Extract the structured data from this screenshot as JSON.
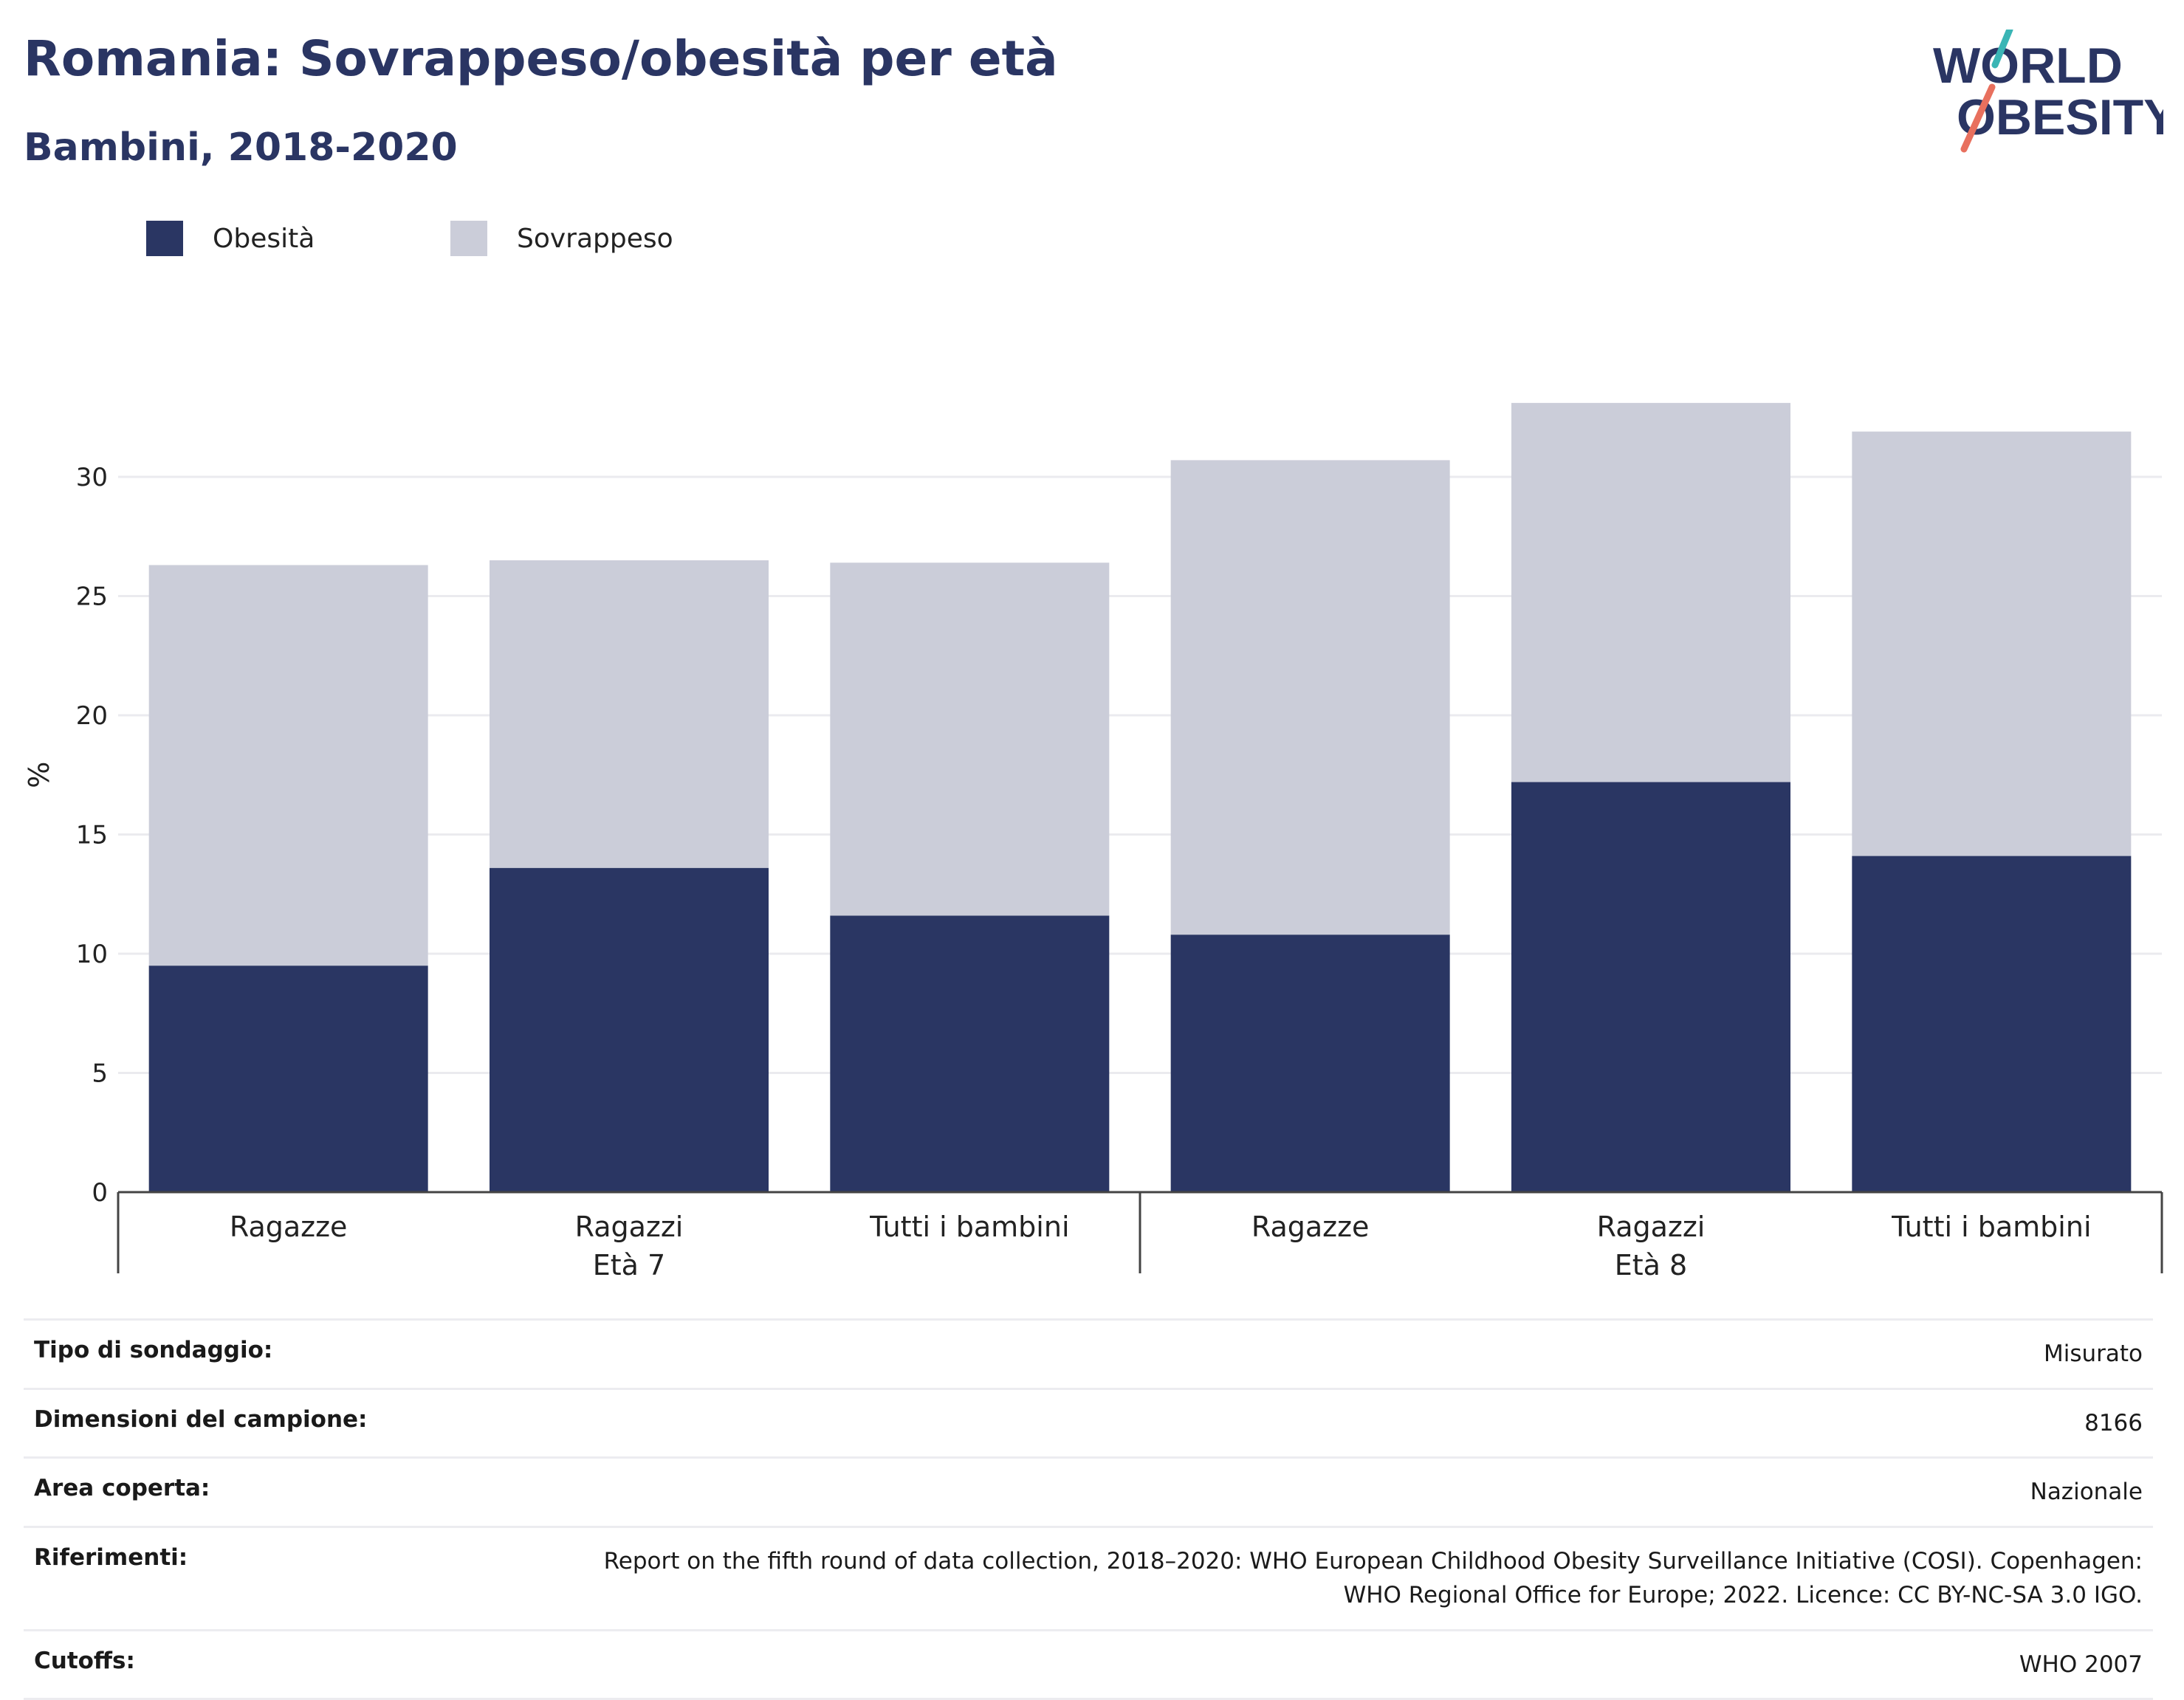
{
  "header": {
    "title": "Romania: Sovrappeso/obesità per età",
    "subtitle": "Bambini, 2018-2020"
  },
  "logo": {
    "line1": "WORLD",
    "line2": "OBESITY"
  },
  "colors": {
    "obesity": "#2a3663",
    "overweight": "#cbcdd9",
    "title": "#2a3563",
    "logo_teal": "#3ab5b5",
    "logo_coral": "#e8705e"
  },
  "chart_data": {
    "type": "bar",
    "stacked": true,
    "ylabel": "%",
    "ylim": [
      0,
      35
    ],
    "yticks": [
      0,
      5,
      10,
      15,
      20,
      25,
      30
    ],
    "grid": true,
    "legend_position": "top-left",
    "categories": [
      "Ragazze",
      "Ragazzi",
      "Tutti i bambini",
      "Ragazze",
      "Ragazzi",
      "Tutti i bambini"
    ],
    "groups": [
      {
        "label": "Età 7",
        "start": 0,
        "end": 2
      },
      {
        "label": "Età 8",
        "start": 3,
        "end": 5
      }
    ],
    "series": [
      {
        "name": "Obesità",
        "values": [
          9.5,
          13.6,
          11.6,
          10.8,
          17.2,
          14.1
        ]
      },
      {
        "name": "Sovrappeso",
        "values": [
          16.8,
          12.9,
          14.8,
          19.9,
          15.9,
          17.8
        ]
      }
    ]
  },
  "info": [
    {
      "key": "Tipo di sondaggio:",
      "value": "Misurato"
    },
    {
      "key": "Dimensioni del campione:",
      "value": "8166"
    },
    {
      "key": "Area coperta:",
      "value": "Nazionale"
    },
    {
      "key": "Riferimenti:",
      "value": "Report on the fifth round of data collection, 2018–2020: WHO European Childhood Obesity Surveillance Initiative (COSI). Copenhagen: WHO Regional Office for Europe; 2022. Licence: CC BY-NC-SA 3.0 IGO."
    },
    {
      "key": "Cutoffs:",
      "value": "WHO 2007"
    }
  ]
}
